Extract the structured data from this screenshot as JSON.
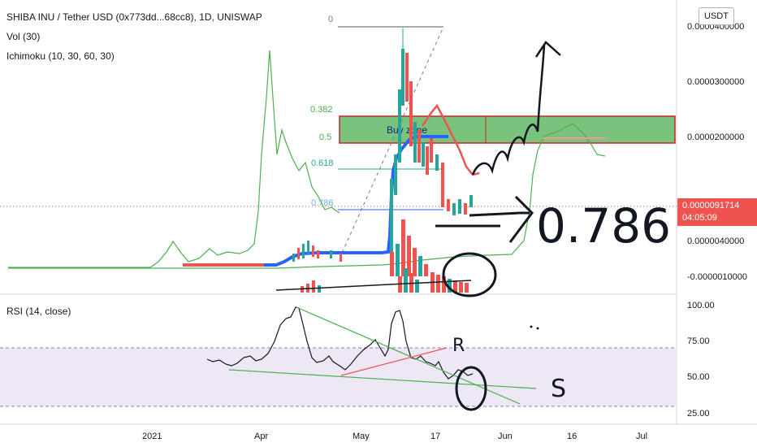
{
  "header": {
    "symbol": "SHIBA INU / Tether USD (0x773dd...68cc8), 1D, UNISWAP",
    "vol": "Vol (30)",
    "ichimoku": "Ichimoku (10, 30, 60, 30)",
    "rsi": "RSI (14, close)"
  },
  "currency": "USDT",
  "last_price": {
    "value": "0.0000091714",
    "countdown": "04:05:09"
  },
  "chart_data": [
    {
      "type": "line",
      "title": "SHIBA INU / Tether USD (0x773dd...68cc8), 1D, UNISWAP",
      "y_tick_labels": [
        "0.0000400000",
        "0.0000300000",
        "0.0000200000",
        "0.0000040000",
        "-0.0000010000"
      ],
      "x_tick_labels": [
        "2021",
        "Apr",
        "May",
        "17",
        "Jun",
        "16",
        "Jul"
      ],
      "fib_labels": [
        "0",
        "0.382",
        "0.5",
        "0.618",
        "0.786"
      ],
      "annotations": [
        "Buy zone",
        "0.786"
      ],
      "colors": {
        "up": "#26a69a",
        "down": "#ef5350",
        "zone": "#4caf50",
        "ichimoku": "#4caf50",
        "base": "#2962ff"
      }
    },
    {
      "type": "line",
      "title": "RSI (14, close)",
      "y_tick_labels": [
        "100.00",
        "75.00",
        "50.00",
        "25.00"
      ],
      "ylim": [
        25,
        100
      ],
      "band": [
        30,
        70
      ],
      "annotations": [
        "R",
        "S"
      ],
      "colors": {
        "band": "#ede7f6",
        "rsi": "#131722",
        "support": "#4caf50",
        "resistance": "#ef5350"
      }
    }
  ]
}
